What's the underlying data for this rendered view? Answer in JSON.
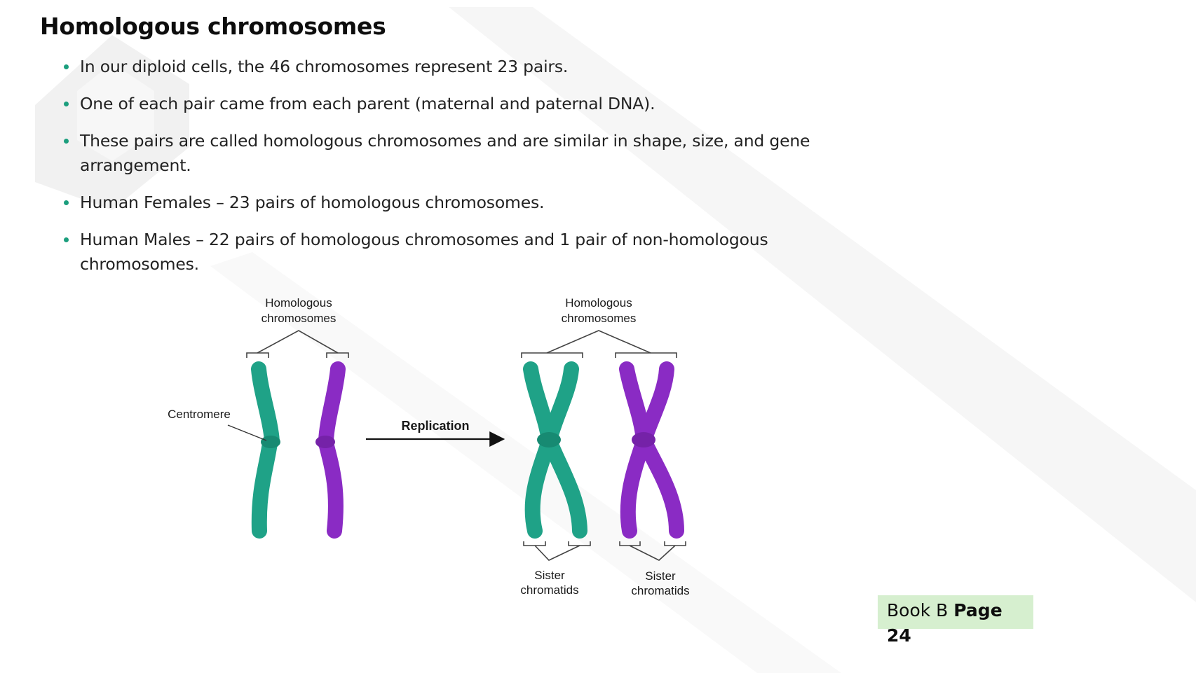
{
  "slide": {
    "title": "Homologous chromosomes",
    "bullets": [
      "In our diploid cells, the 46 chromosomes represent 23 pairs.",
      "One of each pair came from each parent (maternal and paternal DNA).",
      "These pairs are called homologous chromosomes and are similar in shape, size, and gene arrangement.",
      "Human Females – 23 pairs of homologous chromosomes.",
      "Human Males – 22 pairs of homologous chromosomes and 1 pair of non-homologous chromosomes."
    ]
  },
  "diagram": {
    "label_homologous_left_line1": "Homologous",
    "label_homologous_left_line2": "chromosomes",
    "label_homologous_right_line1": "Homologous",
    "label_homologous_right_line2": "chromosomes",
    "label_centromere": "Centromere",
    "label_replication": "Replication",
    "label_sister_left_line1": "Sister",
    "label_sister_left_line2": "chromatids",
    "label_sister_right_line1": "Sister",
    "label_sister_right_line2": "chromatids",
    "colors": {
      "maternal": "#1fa287",
      "paternal": "#8a2bc4"
    }
  },
  "footer": {
    "book_label": "Book B",
    "page_label": "Page",
    "page_number": "24"
  },
  "theme": {
    "bullet_color": "#1b9e7d",
    "highlight_color": "#d6efcf"
  }
}
